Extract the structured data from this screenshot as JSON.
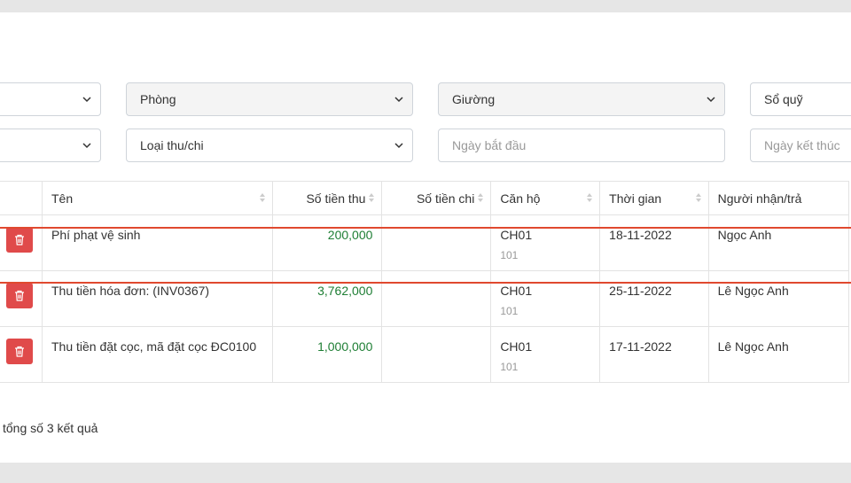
{
  "filters": {
    "room": "Phòng",
    "bed": "Giường",
    "cashbook": "Sổ quỹ",
    "type": "Loại thu/chi",
    "start_date_placeholder": "Ngày bắt đầu",
    "end_date_placeholder": "Ngày kết thúc"
  },
  "table": {
    "headers": [
      "Tên",
      "Số tiền thu",
      "Số tiền chi",
      "Căn hộ",
      "Thời gian",
      "Người nhận/trả"
    ],
    "rows": [
      {
        "name": "Phí phạt vệ sinh",
        "income": "200,000",
        "expense": "",
        "apartment": "CH01",
        "room": "101",
        "date": "18-11-2022",
        "person": "Ngọc Anh"
      },
      {
        "name": "Thu tiền hóa đơn: (INV0367)",
        "income": "3,762,000",
        "expense": "",
        "apartment": "CH01",
        "room": "101",
        "date": "25-11-2022",
        "person": "Lê Ngọc Anh"
      },
      {
        "name": "Thu tiền đặt cọc, mã đặt cọc ĐC0100",
        "income": "1,000,000",
        "expense": "",
        "apartment": "CH01",
        "room": "101",
        "date": "17-11-2022",
        "person": "Lê Ngọc Anh"
      }
    ]
  },
  "footer": {
    "summary": "tổng số 3 kết quả"
  },
  "icons": {
    "delete": "trash-icon",
    "dropdown": "chevron-down-icon",
    "sort": "sort-icon"
  },
  "colors": {
    "delete_button": "#e04a4a",
    "income_text": "#1e7e34",
    "highlight": "#e0492f"
  }
}
